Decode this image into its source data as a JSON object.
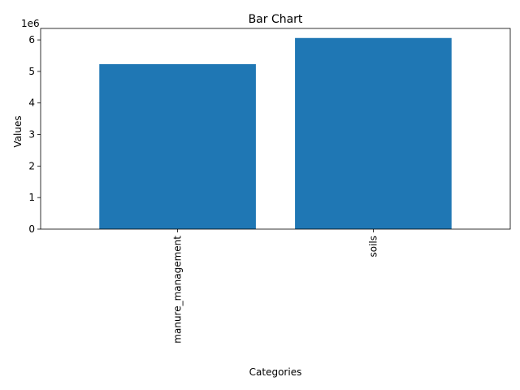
{
  "chart_data": {
    "type": "bar",
    "title": "Bar Chart",
    "xlabel": "Categories",
    "ylabel": "Values",
    "categories": [
      "manure_management",
      "soils"
    ],
    "values": [
      5230000,
      6060000
    ],
    "ylim": [
      0,
      6363000
    ],
    "yticks": [
      0,
      1,
      2,
      3,
      4,
      5,
      6
    ],
    "ytick_scale": 1000000,
    "offset_label": "1e6",
    "grid": false,
    "bar_color": "#1f77b4"
  }
}
